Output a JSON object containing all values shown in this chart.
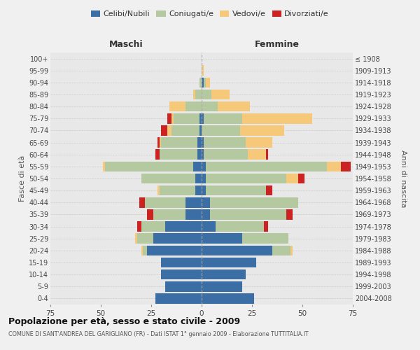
{
  "age_groups": [
    "0-4",
    "5-9",
    "10-14",
    "15-19",
    "20-24",
    "25-29",
    "30-34",
    "35-39",
    "40-44",
    "45-49",
    "50-54",
    "55-59",
    "60-64",
    "65-69",
    "70-74",
    "75-79",
    "80-84",
    "85-89",
    "90-94",
    "95-99",
    "100+"
  ],
  "birth_years": [
    "2004-2008",
    "1999-2003",
    "1994-1998",
    "1989-1993",
    "1984-1988",
    "1979-1983",
    "1974-1978",
    "1969-1973",
    "1964-1968",
    "1959-1963",
    "1954-1958",
    "1949-1953",
    "1944-1948",
    "1939-1943",
    "1934-1938",
    "1929-1933",
    "1924-1928",
    "1919-1923",
    "1914-1918",
    "1909-1913",
    "≤ 1908"
  ],
  "colors": {
    "celibi": "#3a6ea5",
    "coniugati": "#b5c9a0",
    "vedovi": "#f5c87a",
    "divorziati": "#cc2222"
  },
  "maschi": {
    "celibi": [
      23,
      18,
      20,
      20,
      27,
      24,
      18,
      8,
      8,
      3,
      3,
      4,
      2,
      2,
      1,
      1,
      0,
      0,
      0,
      0,
      0
    ],
    "coniugati": [
      0,
      0,
      0,
      0,
      2,
      8,
      12,
      16,
      20,
      18,
      27,
      44,
      19,
      18,
      14,
      13,
      8,
      3,
      1,
      0,
      0
    ],
    "vedovi": [
      0,
      0,
      0,
      0,
      1,
      1,
      0,
      0,
      0,
      1,
      0,
      1,
      0,
      1,
      2,
      1,
      8,
      1,
      0,
      0,
      0
    ],
    "divorziati": [
      0,
      0,
      0,
      0,
      0,
      0,
      2,
      3,
      3,
      0,
      0,
      0,
      2,
      1,
      3,
      2,
      0,
      0,
      0,
      0,
      0
    ]
  },
  "femmine": {
    "celibi": [
      26,
      20,
      22,
      27,
      35,
      20,
      7,
      4,
      4,
      2,
      2,
      2,
      1,
      1,
      0,
      1,
      0,
      0,
      1,
      0,
      0
    ],
    "coniugati": [
      0,
      0,
      0,
      0,
      9,
      23,
      24,
      38,
      44,
      30,
      40,
      60,
      22,
      21,
      19,
      19,
      8,
      5,
      1,
      0,
      0
    ],
    "vedovi": [
      0,
      0,
      0,
      0,
      1,
      0,
      0,
      0,
      0,
      0,
      6,
      7,
      9,
      13,
      22,
      35,
      16,
      9,
      2,
      1,
      0
    ],
    "divorziati": [
      0,
      0,
      0,
      0,
      0,
      0,
      2,
      3,
      0,
      3,
      3,
      5,
      1,
      0,
      0,
      0,
      0,
      0,
      0,
      0,
      0
    ]
  },
  "xlim": 75,
  "title": "Popolazione per età, sesso e stato civile - 2009",
  "subtitle": "COMUNE DI SANT'ANDREA DEL GARIGLIANO (FR) - Dati ISTAT 1° gennaio 2009 - Elaborazione TUTTITALIA.IT",
  "ylabel_left": "Fasce di età",
  "ylabel_right": "Anni di nascita",
  "xlabel_left": "Maschi",
  "xlabel_right": "Femmine",
  "legend_labels": [
    "Celibi/Nubili",
    "Coniugati/e",
    "Vedovi/e",
    "Divorziati/e"
  ],
  "bg_color": "#f0f0f0",
  "plot_bg": "#e8e8e8",
  "bar_height": 0.85
}
